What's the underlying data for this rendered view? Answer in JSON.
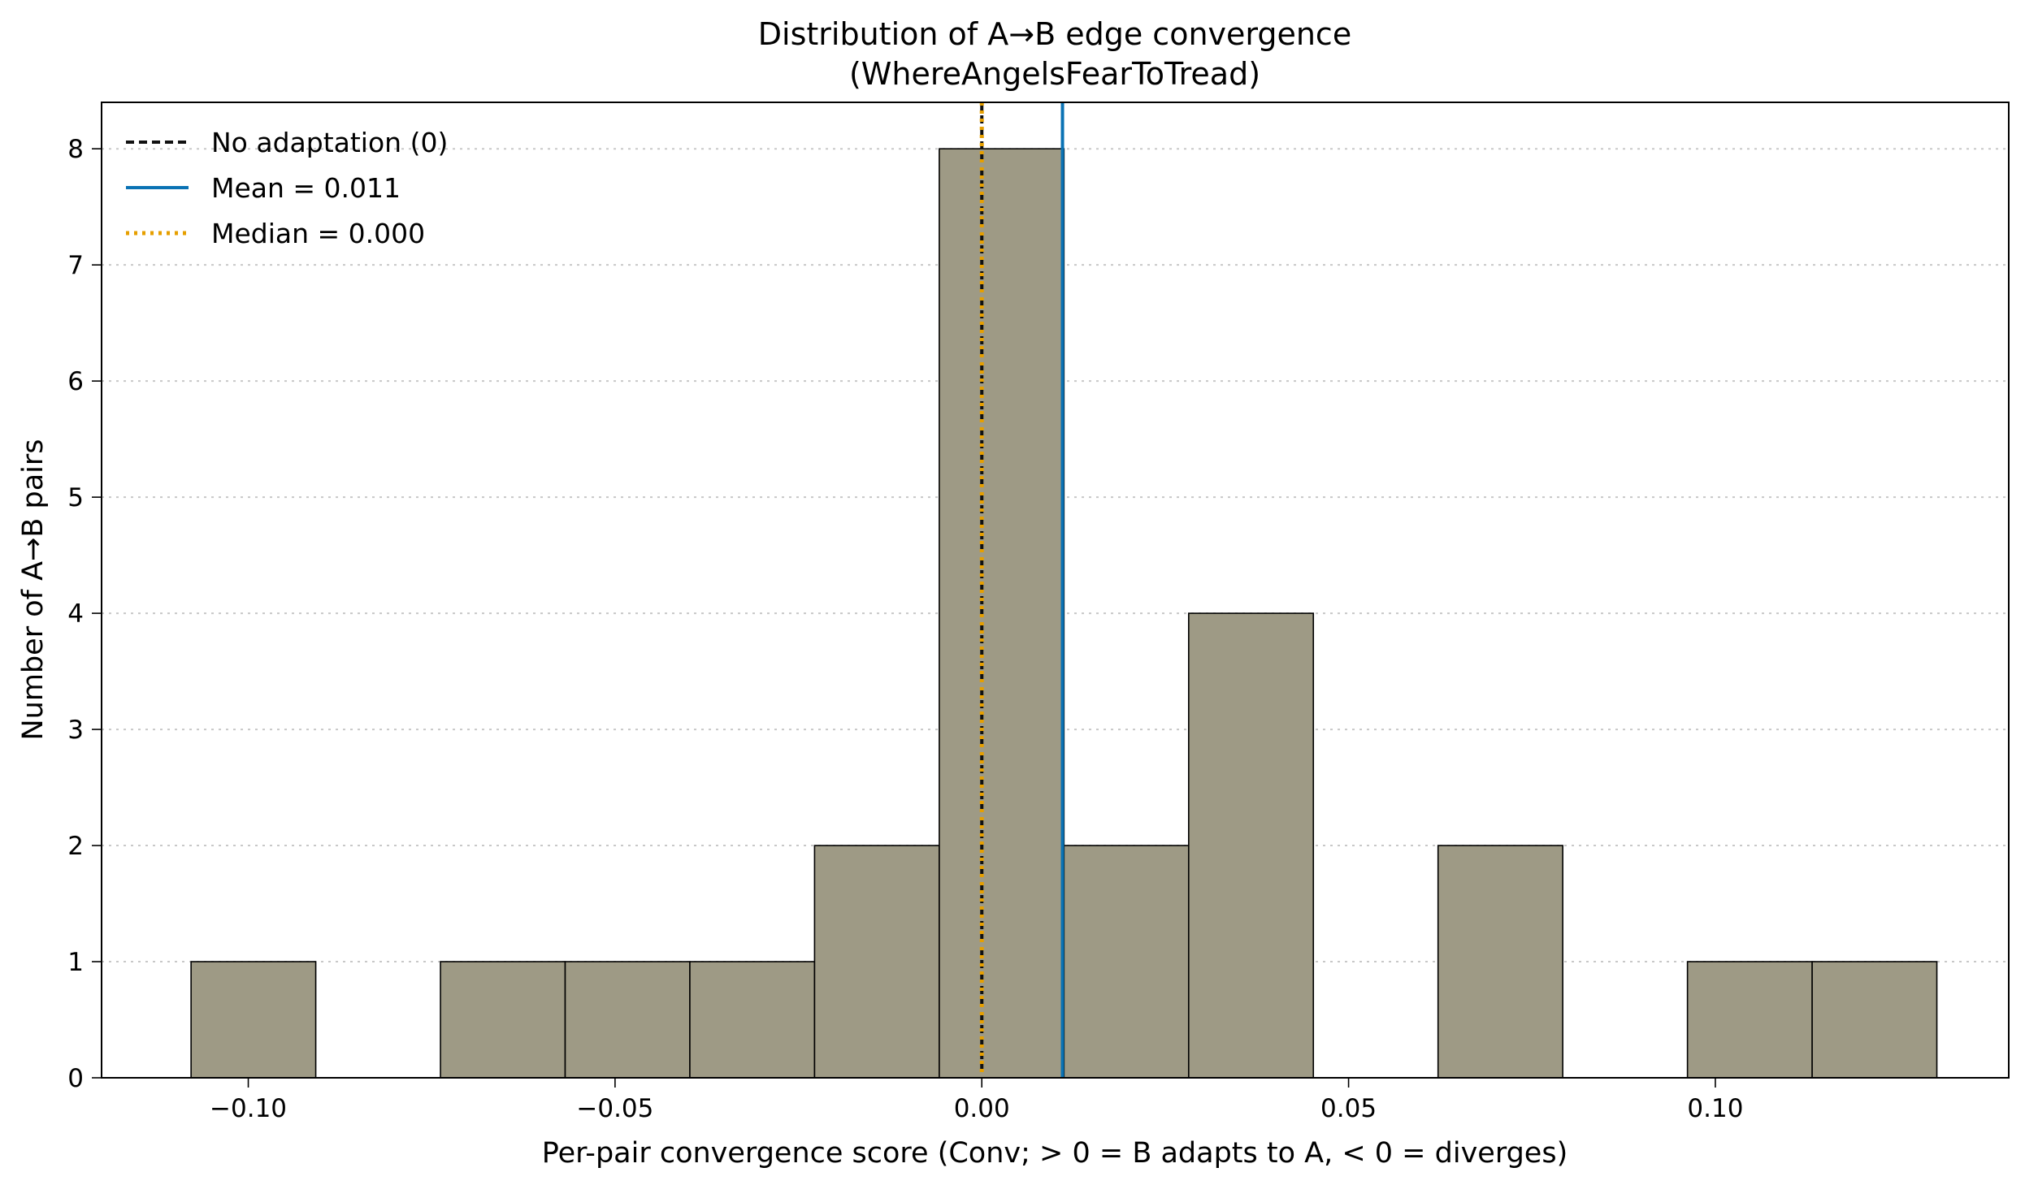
{
  "chart_data": {
    "type": "histogram",
    "title_lines": [
      "Distribution of A→B edge convergence",
      "(WhereAngelsFearToTread)"
    ],
    "xlabel": "Per-pair convergence score (Conv; > 0 = B adapts to A, < 0 = diverges)",
    "ylabel": "Number of A→B pairs",
    "xlim": [
      -0.12,
      0.14
    ],
    "ylim": [
      0,
      8.4
    ],
    "x_ticks": [
      -0.1,
      -0.05,
      0.0,
      0.05,
      0.1
    ],
    "x_tick_labels": [
      "−0.10",
      "−0.05",
      "0.00",
      "0.05",
      "0.10"
    ],
    "y_ticks": [
      0,
      1,
      2,
      3,
      4,
      5,
      6,
      7,
      8
    ],
    "y_tick_labels": [
      "0",
      "1",
      "2",
      "3",
      "4",
      "5",
      "6",
      "7",
      "8"
    ],
    "grid": "horizontal-dotted",
    "bin_start": -0.1078,
    "bin_width": 0.017,
    "counts": [
      1,
      0,
      1,
      1,
      1,
      2,
      8,
      2,
      4,
      0,
      2,
      0,
      1,
      1
    ],
    "bar_color": "#9e9a85",
    "lines": [
      {
        "name": "No adaptation (0)",
        "x": 0.0,
        "style": "dashed",
        "color": "#111111"
      },
      {
        "name": "Mean = 0.011",
        "x": 0.011,
        "style": "solid",
        "color": "#0a72b4"
      },
      {
        "name": "Median = 0.000",
        "x": 0.0,
        "style": "dotted",
        "color": "#e69f00"
      }
    ],
    "legend_position": "upper-left"
  }
}
